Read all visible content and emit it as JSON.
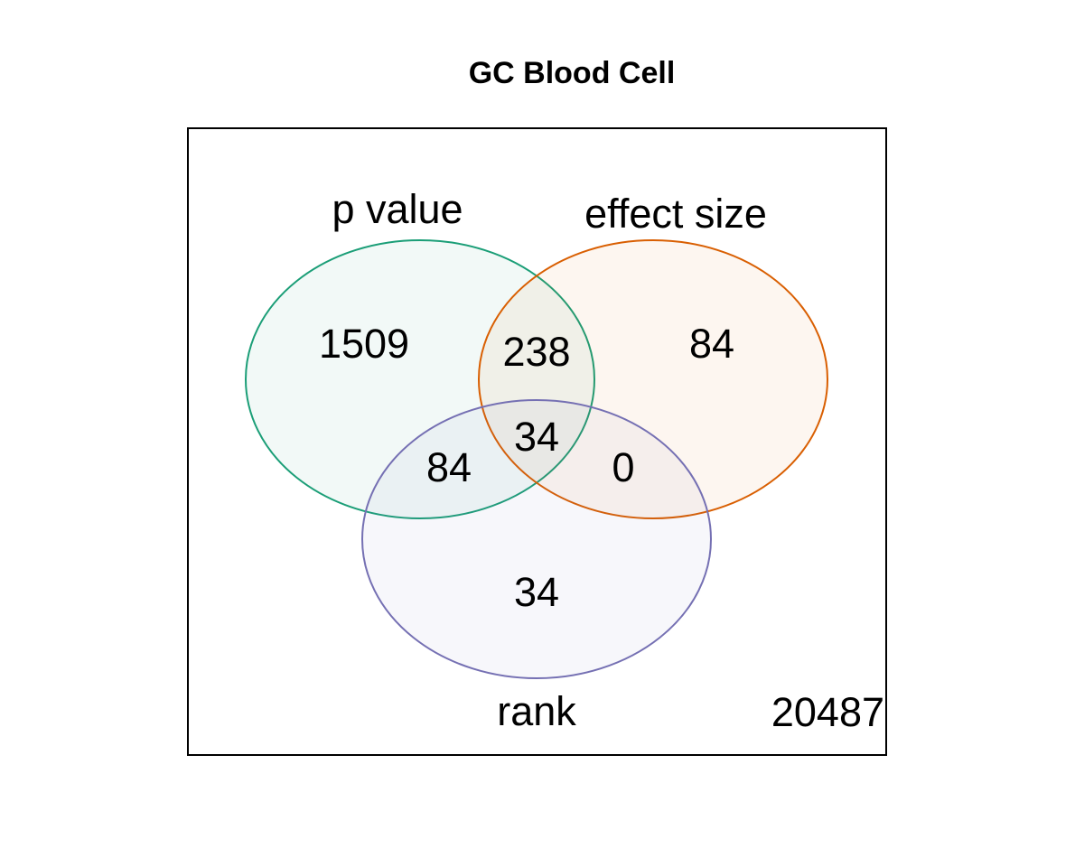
{
  "title": "GC Blood Cell",
  "sets": [
    {
      "name": "p value",
      "color": "#1b9e77"
    },
    {
      "name": "effect size",
      "color": "#d95f02"
    },
    {
      "name": "rank",
      "color": "#7570b3"
    }
  ],
  "regions": {
    "p_value_only": "1509",
    "effect_size_only": "84",
    "rank_only": "34",
    "p_value_and_effect_size": "238",
    "p_value_and_rank": "84",
    "effect_size_and_rank": "0",
    "all_three": "34",
    "outside": "20487"
  }
}
